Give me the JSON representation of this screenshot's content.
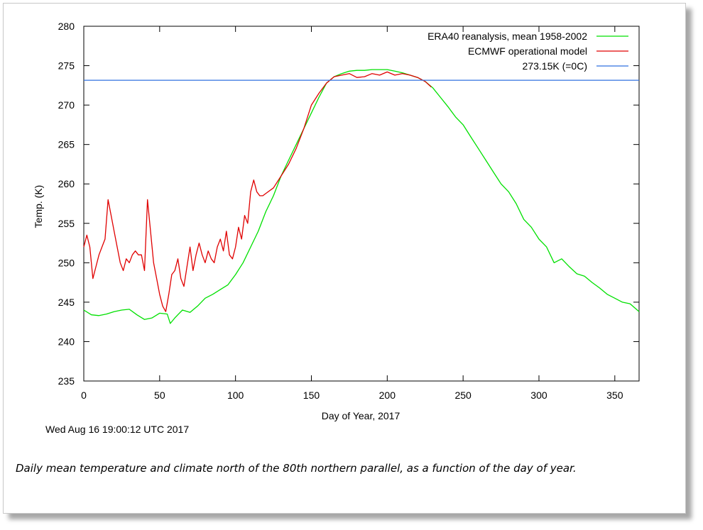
{
  "caption": "Daily mean temperature and climate north of the 80th northern parallel, as a function of the day of year.",
  "timestamp": "Wed Aug 16 19:00:12 UTC 2017",
  "chart_data": {
    "type": "line",
    "title": "",
    "xlabel": "Day of Year, 2017",
    "ylabel": "Temp. (K)",
    "xlim": [
      0,
      366
    ],
    "ylim": [
      235,
      280
    ],
    "xticks": [
      0,
      50,
      100,
      150,
      200,
      250,
      300,
      350
    ],
    "yticks": [
      235,
      240,
      245,
      250,
      255,
      260,
      265,
      270,
      275,
      280
    ],
    "grid": false,
    "legend_position": "top-right",
    "series": [
      {
        "name": "ERA40 reanalysis, mean 1958-2002",
        "color": "#00e000",
        "x": [
          0,
          5,
          10,
          15,
          20,
          25,
          30,
          35,
          40,
          45,
          50,
          55,
          57,
          60,
          65,
          70,
          75,
          80,
          85,
          90,
          95,
          100,
          105,
          110,
          115,
          120,
          125,
          130,
          135,
          140,
          145,
          150,
          155,
          160,
          165,
          170,
          175,
          180,
          185,
          190,
          195,
          200,
          205,
          210,
          215,
          220,
          225,
          230,
          235,
          240,
          245,
          250,
          255,
          260,
          265,
          270,
          275,
          280,
          285,
          290,
          295,
          300,
          305,
          310,
          315,
          320,
          325,
          330,
          335,
          340,
          345,
          350,
          355,
          360,
          366
        ],
        "y": [
          244.0,
          243.4,
          243.3,
          243.5,
          243.8,
          244.0,
          244.1,
          243.4,
          242.8,
          243.0,
          243.6,
          243.5,
          242.3,
          243.0,
          244.0,
          243.7,
          244.5,
          245.5,
          246.0,
          246.6,
          247.2,
          248.5,
          250.0,
          252.0,
          254.0,
          256.5,
          258.5,
          261.0,
          263.0,
          265.0,
          267.0,
          269.0,
          271.0,
          272.8,
          273.6,
          274.0,
          274.3,
          274.4,
          274.4,
          274.5,
          274.5,
          274.5,
          274.3,
          274.1,
          273.8,
          273.5,
          273.0,
          272.2,
          271.0,
          269.8,
          268.5,
          267.5,
          266.0,
          264.5,
          263.0,
          261.5,
          260.0,
          259.0,
          257.5,
          255.5,
          254.5,
          253.0,
          252.0,
          250.0,
          250.5,
          249.5,
          248.6,
          248.3,
          247.5,
          246.8,
          246.0,
          245.5,
          245.0,
          244.8,
          243.8
        ]
      },
      {
        "name": "ECMWF operational model",
        "color": "#e00000",
        "x": [
          0,
          2,
          4,
          6,
          8,
          10,
          12,
          14,
          16,
          18,
          20,
          22,
          24,
          26,
          28,
          30,
          32,
          34,
          36,
          38,
          40,
          42,
          44,
          46,
          48,
          50,
          52,
          54,
          56,
          58,
          60,
          62,
          64,
          66,
          68,
          70,
          72,
          74,
          76,
          78,
          80,
          82,
          84,
          86,
          88,
          90,
          92,
          94,
          96,
          98,
          100,
          102,
          104,
          106,
          108,
          110,
          112,
          114,
          116,
          118,
          120,
          125,
          130,
          135,
          140,
          145,
          150,
          155,
          160,
          165,
          170,
          175,
          180,
          185,
          190,
          195,
          200,
          205,
          210,
          215,
          220,
          225,
          229
        ],
        "y": [
          252.0,
          253.5,
          252.0,
          248.0,
          249.5,
          251.0,
          252.0,
          253.0,
          258.0,
          256.0,
          254.0,
          252.0,
          250.0,
          249.0,
          250.5,
          250.0,
          251.0,
          251.5,
          251.0,
          251.0,
          249.0,
          258.0,
          254.0,
          250.0,
          248.0,
          246.0,
          244.5,
          243.8,
          246.0,
          248.5,
          249.0,
          250.5,
          248.0,
          247.0,
          249.5,
          252.0,
          249.0,
          251.0,
          252.5,
          251.0,
          250.0,
          251.5,
          250.5,
          250.0,
          252.0,
          253.0,
          251.5,
          254.0,
          251.0,
          250.5,
          252.0,
          254.5,
          253.0,
          256.0,
          255.0,
          259.0,
          260.5,
          259.0,
          258.5,
          258.5,
          258.8,
          259.5,
          261.0,
          262.5,
          264.5,
          267.0,
          270.0,
          271.5,
          272.8,
          273.6,
          273.8,
          274.0,
          273.5,
          273.6,
          274.0,
          273.8,
          274.2,
          273.8,
          274.0,
          273.8,
          273.5,
          273.0,
          272.3
        ]
      },
      {
        "name": "273.15K (=0C)",
        "color": "#3070e0",
        "x": [
          0,
          366
        ],
        "y": [
          273.15,
          273.15
        ]
      }
    ]
  }
}
